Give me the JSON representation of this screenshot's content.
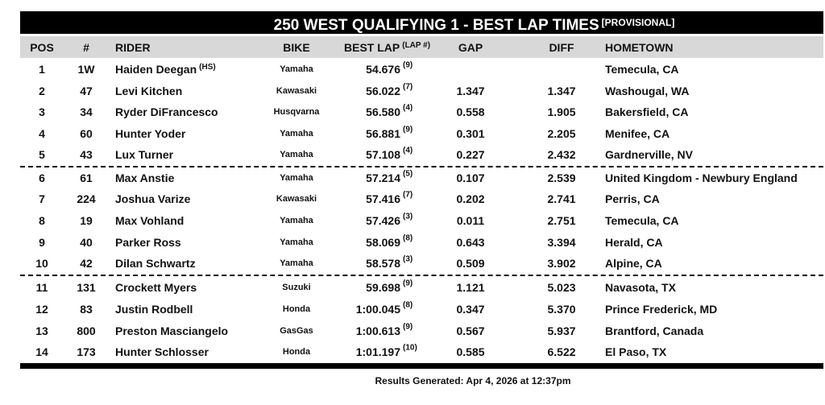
{
  "title": "250 WEST QUALIFYING 1 - BEST LAP TIMES",
  "title_note": "[PROVISIONAL]",
  "header": {
    "pos": "POS",
    "num": "#",
    "rider": "RIDER",
    "bike": "BIKE",
    "best_lap": "BEST LAP",
    "best_lap_note": "(LAP #)",
    "gap": "GAP",
    "diff": "DIFF",
    "hometown": "HOMETOWN"
  },
  "rows": [
    {
      "pos": "1",
      "num": "1W",
      "rider": "Haiden Deegan",
      "rider_note": "(HS)",
      "bike": "Yamaha",
      "best_lap": "54.676",
      "lap": "(9)",
      "hometown": "Temecula, CA"
    },
    {
      "pos": "2",
      "num": "47",
      "rider": "Levi Kitchen",
      "bike": "Kawasaki",
      "best_lap": "56.022",
      "lap": "(7)",
      "gap": "1.347",
      "diff": "1.347",
      "hometown": "Washougal, WA"
    },
    {
      "pos": "3",
      "num": "34",
      "rider": "Ryder DiFrancesco",
      "bike": "Husqvarna",
      "best_lap": "56.580",
      "lap": "(4)",
      "gap": "0.558",
      "diff": "1.905",
      "hometown": "Bakersfield, CA"
    },
    {
      "pos": "4",
      "num": "60",
      "rider": "Hunter Yoder",
      "bike": "Yamaha",
      "best_lap": "56.881",
      "lap": "(9)",
      "gap": "0.301",
      "diff": "2.205",
      "hometown": "Menifee, CA"
    },
    {
      "pos": "5",
      "num": "43",
      "rider": "Lux Turner",
      "bike": "Yamaha",
      "best_lap": "57.108",
      "lap": "(4)",
      "gap": "0.227",
      "diff": "2.432",
      "hometown": "Gardnerville, NV"
    },
    {
      "pos": "6",
      "num": "61",
      "rider": "Max Anstie",
      "bike": "Yamaha",
      "best_lap": "57.214",
      "lap": "(5)",
      "gap": "0.107",
      "diff": "2.539",
      "hometown": "United Kingdom - Newbury England"
    },
    {
      "pos": "7",
      "num": "224",
      "rider": "Joshua Varize",
      "bike": "Kawasaki",
      "best_lap": "57.416",
      "lap": "(7)",
      "gap": "0.202",
      "diff": "2.741",
      "hometown": "Perris, CA"
    },
    {
      "pos": "8",
      "num": "19",
      "rider": "Max Vohland",
      "bike": "Yamaha",
      "best_lap": "57.426",
      "lap": "(3)",
      "gap": "0.011",
      "diff": "2.751",
      "hometown": "Temecula, CA"
    },
    {
      "pos": "9",
      "num": "40",
      "rider": "Parker Ross",
      "bike": "Yamaha",
      "best_lap": "58.069",
      "lap": "(8)",
      "gap": "0.643",
      "diff": "3.394",
      "hometown": "Herald, CA"
    },
    {
      "pos": "10",
      "num": "42",
      "rider": "Dilan Schwartz",
      "bike": "Yamaha",
      "best_lap": "58.578",
      "lap": "(3)",
      "gap": "0.509",
      "diff": "3.902",
      "hometown": "Alpine, CA"
    },
    {
      "pos": "11",
      "num": "131",
      "rider": "Crockett Myers",
      "bike": "Suzuki",
      "best_lap": "59.698",
      "lap": "(9)",
      "gap": "1.121",
      "diff": "5.023",
      "hometown": "Navasota, TX"
    },
    {
      "pos": "12",
      "num": "83",
      "rider": "Justin Rodbell",
      "bike": "Honda",
      "best_lap": "1:00.045",
      "lap": "(8)",
      "gap": "0.347",
      "diff": "5.370",
      "hometown": "Prince Frederick, MD"
    },
    {
      "pos": "13",
      "num": "800",
      "rider": "Preston Masciangelo",
      "bike": "GasGas",
      "best_lap": "1:00.613",
      "lap": "(9)",
      "gap": "0.567",
      "diff": "5.937",
      "hometown": "Brantford, Canada"
    },
    {
      "pos": "14",
      "num": "173",
      "rider": "Hunter Schlosser",
      "bike": "Honda",
      "best_lap": "1:01.197",
      "lap": "(10)",
      "gap": "0.585",
      "diff": "6.522",
      "hometown": "El Paso, TX"
    }
  ],
  "footer": "Results Generated: Apr 4, 2026 at 12:37pm"
}
